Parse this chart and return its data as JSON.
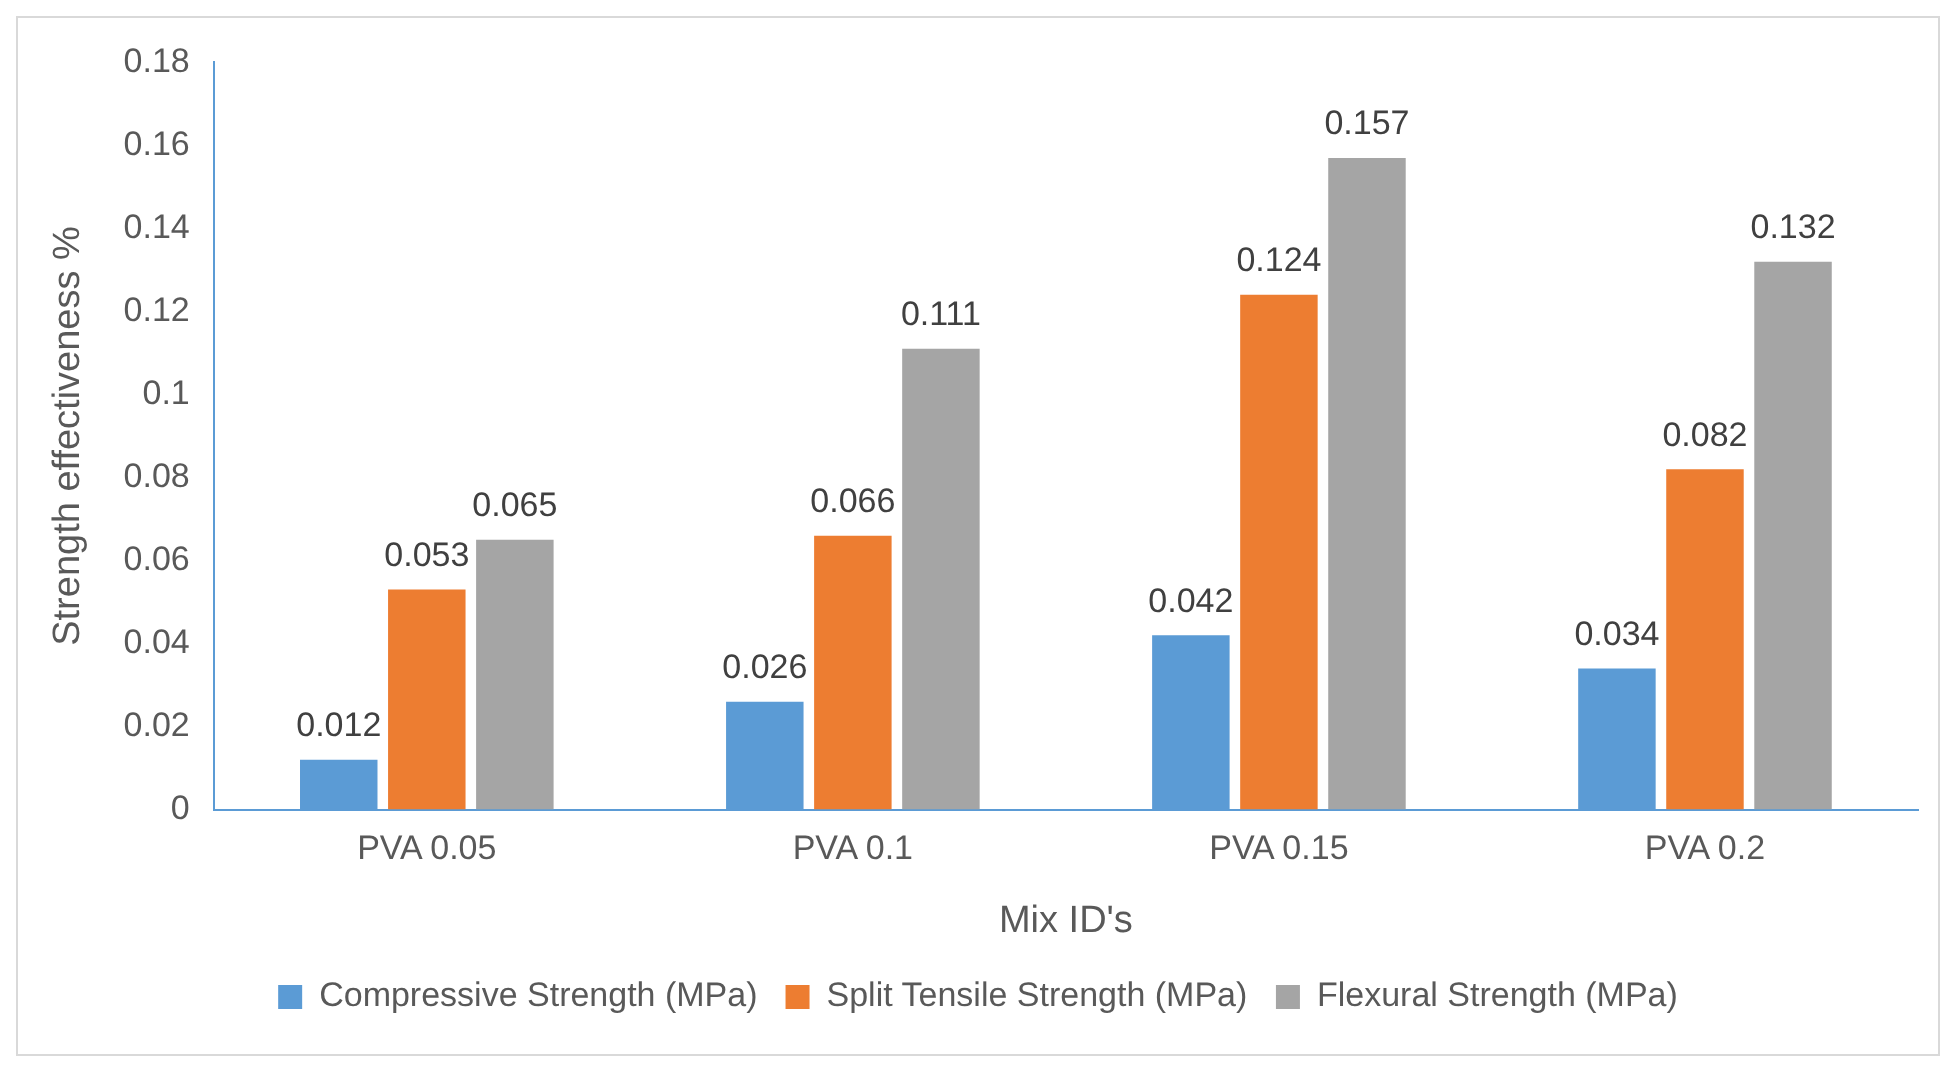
{
  "chart_data": {
    "type": "bar",
    "xlabel": "Mix ID's",
    "ylabel": "Strength effectiveness %",
    "categories": [
      "PVA 0.05",
      "PVA 0.1",
      "PVA 0.15",
      "PVA 0.2"
    ],
    "series": [
      {
        "name": "Compressive Strength (MPa)",
        "color": "#5b9bd5",
        "values": [
          0.012,
          0.026,
          0.042,
          0.034
        ]
      },
      {
        "name": "Split Tensile Strength (MPa)",
        "color": "#ed7d31",
        "values": [
          0.053,
          0.066,
          0.124,
          0.082
        ]
      },
      {
        "name": "Flexural Strength (MPa)",
        "color": "#a5a5a5",
        "values": [
          0.065,
          0.111,
          0.157,
          0.132
        ]
      }
    ],
    "ylim": [
      0,
      0.18
    ],
    "yticks": [
      0,
      0.02,
      0.04,
      0.06,
      0.08,
      0.1,
      0.12,
      0.14,
      0.16,
      0.18
    ],
    "grid": false,
    "legend": "bottom",
    "data_labels": true
  }
}
